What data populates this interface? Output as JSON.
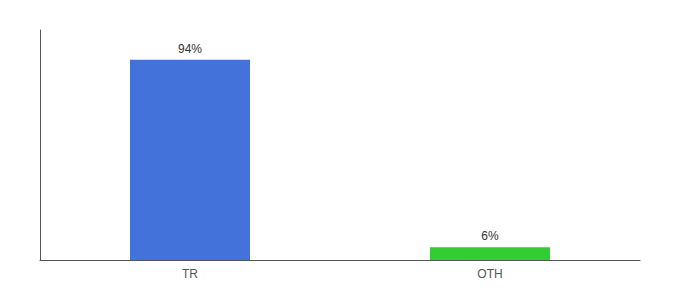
{
  "chart_data": {
    "type": "bar",
    "categories": [
      "TR",
      "OTH"
    ],
    "values": [
      94,
      6
    ],
    "value_labels": [
      "94%",
      "6%"
    ],
    "colors": [
      "#4472db",
      "#33cc33"
    ],
    "ylim": [
      0,
      108
    ],
    "grid": false,
    "data_labels": true,
    "tick_labels": "x"
  }
}
